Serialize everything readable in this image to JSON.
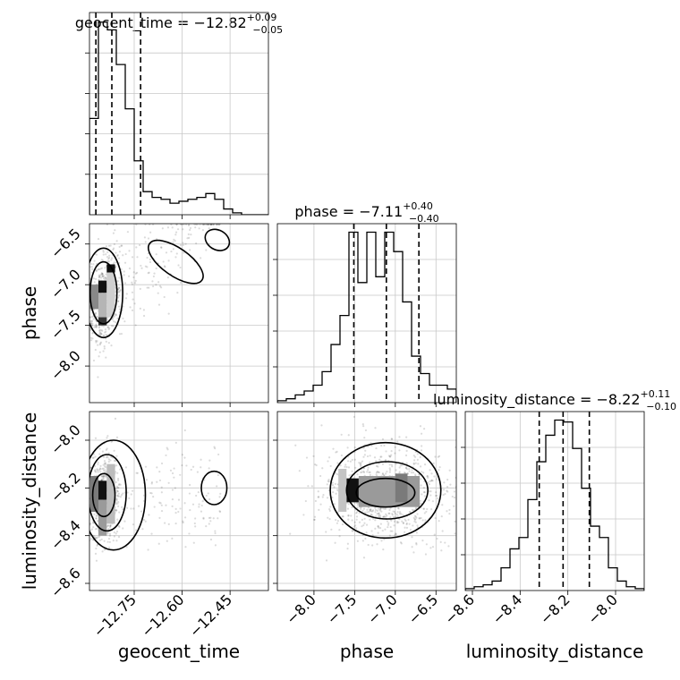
{
  "chart_data": {
    "type": "corner",
    "parameters": [
      "geocent_time",
      "phase",
      "luminosity_distance"
    ],
    "axis_labels": [
      "geocent_time",
      "phase",
      "luminosity_distance"
    ],
    "titles": {
      "geocent_time": {
        "name": "geocent_time",
        "median": "−12.82",
        "plus": "+0.09",
        "minus": "−0.05"
      },
      "phase": {
        "name": "phase",
        "median": "−7.11",
        "plus": "+0.40",
        "minus": "−0.40"
      },
      "luminosity_distance": {
        "name": "luminosity_distance",
        "median": "−8.22",
        "plus": "+0.11",
        "minus": "−0.10"
      }
    },
    "ranges": {
      "geocent_time": [
        -12.89,
        -12.33
      ],
      "phase": [
        -8.45,
        -6.25
      ],
      "luminosity_distance": [
        -8.63,
        -7.88
      ]
    },
    "ticks": {
      "geocent_time": [
        -12.75,
        -12.6,
        -12.45
      ],
      "phase": [
        -8.0,
        -7.5,
        -7.0,
        -6.5
      ],
      "luminosity_distance": [
        -8.6,
        -8.4,
        -8.2,
        -8.0
      ]
    },
    "tick_labels": {
      "geocent_time": [
        "−12.75",
        "−12.60",
        "−12.45"
      ],
      "phase": [
        "−8.0",
        "−7.5",
        "−7.0",
        "−6.5"
      ],
      "luminosity_distance": [
        "−8.6",
        "−8.4",
        "−8.2",
        "−8.0"
      ]
    },
    "quantiles": {
      "geocent_time": [
        -12.87,
        -12.82,
        -12.73
      ],
      "phase": [
        -7.51,
        -7.11,
        -6.71
      ],
      "luminosity_distance": [
        -8.32,
        -8.22,
        -8.11
      ]
    },
    "histograms": {
      "geocent_time": {
        "edges": [
          -12.89,
          -12.862,
          -12.834,
          -12.806,
          -12.778,
          -12.75,
          -12.722,
          -12.694,
          -12.666,
          -12.638,
          -12.61,
          -12.582,
          -12.554,
          -12.526,
          -12.498,
          -12.47,
          -12.442,
          -12.414,
          -12.386,
          -12.358,
          -12.33
        ],
        "counts": [
          50,
          100,
          96,
          78,
          55,
          28,
          12,
          9,
          8,
          6,
          7,
          8,
          9,
          11,
          8,
          3,
          1,
          0,
          0,
          0
        ]
      },
      "phase": {
        "edges": [
          -8.45,
          -8.34,
          -8.23,
          -8.12,
          -8.01,
          -7.9,
          -7.79,
          -7.68,
          -7.57,
          -7.46,
          -7.35,
          -7.24,
          -7.13,
          -7.02,
          -6.91,
          -6.8,
          -6.69,
          -6.58,
          -6.47,
          -6.36,
          -6.25
        ],
        "counts": [
          1,
          2,
          4,
          6,
          9,
          16,
          30,
          45,
          88,
          62,
          88,
          65,
          88,
          78,
          52,
          24,
          15,
          9,
          9,
          7
        ]
      },
      "luminosity_distance": {
        "edges": [
          -8.63,
          -8.5925,
          -8.555,
          -8.5175,
          -8.48,
          -8.4425,
          -8.405,
          -8.3675,
          -8.33,
          -8.2925,
          -8.255,
          -8.2175,
          -8.18,
          -8.1425,
          -8.105,
          -8.0675,
          -8.03,
          -7.9925,
          -7.955,
          -7.9175,
          -7.88
        ],
        "counts": [
          1,
          2,
          3,
          5,
          12,
          22,
          28,
          48,
          68,
          82,
          90,
          89,
          75,
          54,
          34,
          28,
          12,
          5,
          2,
          1
        ]
      }
    },
    "grid": true,
    "style": "monochrome contours with scatter points and shaded density"
  }
}
